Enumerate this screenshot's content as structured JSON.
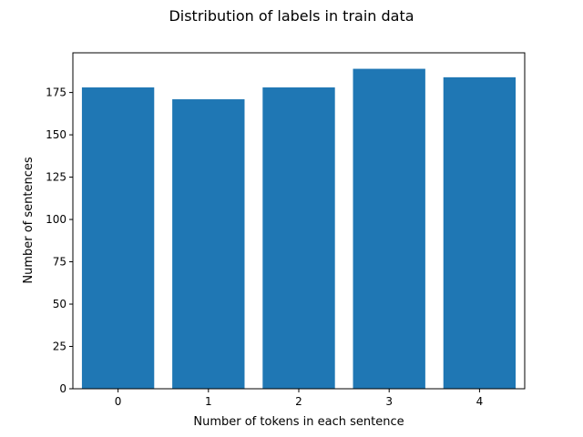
{
  "chart_data": {
    "type": "bar",
    "title": "Distribution of labels in train data",
    "xlabel": "Number of tokens in each sentence",
    "ylabel": "Number of sentences",
    "categories": [
      "0",
      "1",
      "2",
      "3",
      "4"
    ],
    "values": [
      178,
      171,
      178,
      189,
      184
    ],
    "ylim": [
      0,
      198.45
    ],
    "yticks": [
      0,
      25,
      50,
      75,
      100,
      125,
      150,
      175
    ],
    "xlim": [
      -0.5,
      4.5
    ],
    "bar_color": "#1f77b4",
    "grid": false,
    "legend": "none"
  }
}
